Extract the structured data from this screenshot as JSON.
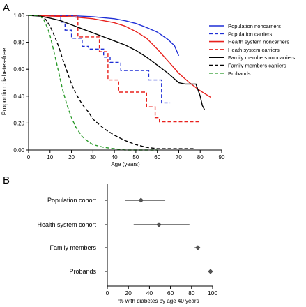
{
  "chart_data": [
    {
      "panel": "A",
      "type": "line",
      "ylabel": "Proportion diabetes-free",
      "xlabel": "Age (years)",
      "xlim": [
        0,
        90
      ],
      "ylim": [
        0,
        1.0
      ],
      "xticks": [
        "0",
        "10",
        "20",
        "30",
        "40",
        "50",
        "60",
        "70",
        "80",
        "90"
      ],
      "yticks": [
        "0.00",
        "0.20",
        "0.40",
        "0.60",
        "0.80",
        "1.00"
      ],
      "grid": false,
      "legend_position": "right",
      "series": [
        {
          "name": "Population noncarriers",
          "color": "#1f2fd6",
          "dash": "solid",
          "x": [
            0,
            10,
            20,
            30,
            40,
            45,
            50,
            55,
            60,
            65,
            68,
            70
          ],
          "y": [
            1.0,
            1.0,
            0.998,
            0.99,
            0.975,
            0.96,
            0.94,
            0.91,
            0.875,
            0.82,
            0.775,
            0.7
          ]
        },
        {
          "name": "Population carriers",
          "color": "#1f2fd6",
          "dash": "dashed",
          "x": [
            0,
            12,
            15,
            15,
            17,
            17,
            20,
            20,
            25,
            25,
            28,
            28,
            35,
            35,
            38,
            38,
            43,
            43,
            56,
            56,
            62,
            62,
            66
          ],
          "y": [
            1.0,
            1.0,
            1.0,
            0.95,
            0.95,
            0.89,
            0.89,
            0.83,
            0.83,
            0.77,
            0.77,
            0.75,
            0.75,
            0.69,
            0.69,
            0.65,
            0.65,
            0.59,
            0.59,
            0.52,
            0.52,
            0.35,
            0.35
          ]
        },
        {
          "name": "Health system noncarriers",
          "color": "#e8201c",
          "dash": "solid",
          "x": [
            0,
            20,
            30,
            40,
            45,
            50,
            55,
            60,
            65,
            70,
            75,
            80,
            85
          ],
          "y": [
            1.0,
            0.99,
            0.975,
            0.945,
            0.92,
            0.88,
            0.83,
            0.75,
            0.66,
            0.57,
            0.5,
            0.44,
            0.39
          ]
        },
        {
          "name": "Heath system carriers",
          "color": "#e8201c",
          "dash": "dashed",
          "x": [
            0,
            18,
            23,
            23,
            27,
            27,
            33,
            33,
            37,
            37,
            42,
            42,
            55,
            55,
            59,
            59,
            61,
            61,
            80
          ],
          "y": [
            1.0,
            1.0,
            1.0,
            0.84,
            0.84,
            0.84,
            0.84,
            0.73,
            0.73,
            0.52,
            0.52,
            0.43,
            0.43,
            0.32,
            0.32,
            0.24,
            0.24,
            0.21,
            0.21
          ]
        },
        {
          "name": "Family members noncarriers",
          "color": "#000000",
          "dash": "solid",
          "x": [
            0,
            5,
            10,
            15,
            20,
            25,
            30,
            35,
            40,
            45,
            50,
            55,
            60,
            65,
            70,
            73,
            78,
            80,
            81,
            82
          ],
          "y": [
            1.0,
            0.995,
            0.98,
            0.96,
            0.93,
            0.9,
            0.87,
            0.84,
            0.81,
            0.78,
            0.74,
            0.69,
            0.63,
            0.57,
            0.5,
            0.49,
            0.49,
            0.4,
            0.33,
            0.3
          ]
        },
        {
          "name": "Family members carriers",
          "color": "#000000",
          "dash": "dashed",
          "x": [
            0,
            5,
            8,
            10,
            12,
            14,
            16,
            18,
            20,
            22,
            25,
            28,
            30,
            35,
            40,
            45,
            50,
            55,
            60,
            65,
            70,
            77
          ],
          "y": [
            1.0,
            1.0,
            0.97,
            0.92,
            0.85,
            0.77,
            0.67,
            0.58,
            0.49,
            0.42,
            0.34,
            0.28,
            0.23,
            0.16,
            0.11,
            0.07,
            0.04,
            0.02,
            0.01,
            0.01,
            0.01,
            0.01
          ]
        },
        {
          "name": "Probands",
          "color": "#2a9a2a",
          "dash": "dashed",
          "x": [
            0,
            5,
            7,
            9,
            10,
            12,
            14,
            16,
            18,
            20,
            22,
            25,
            28,
            30,
            35,
            40,
            45,
            50,
            55,
            60
          ],
          "y": [
            1.0,
            1.0,
            0.97,
            0.9,
            0.85,
            0.72,
            0.58,
            0.44,
            0.33,
            0.24,
            0.17,
            0.1,
            0.06,
            0.04,
            0.02,
            0.01,
            0.0,
            0.0,
            0.0,
            0.0
          ]
        }
      ]
    },
    {
      "panel": "B",
      "type": "scatter",
      "xlabel": "% with diabetes by age 40 years",
      "xlim": [
        0,
        100
      ],
      "xticks": [
        "0",
        "20",
        "40",
        "60",
        "80",
        "100"
      ],
      "categories": [
        "Population cohort",
        "Health system cohort",
        "Family members",
        "Probands"
      ],
      "values": [
        32,
        49,
        86,
        98
      ],
      "ci_low": [
        17,
        25,
        83,
        97
      ],
      "ci_high": [
        55,
        78,
        88,
        99
      ]
    }
  ]
}
